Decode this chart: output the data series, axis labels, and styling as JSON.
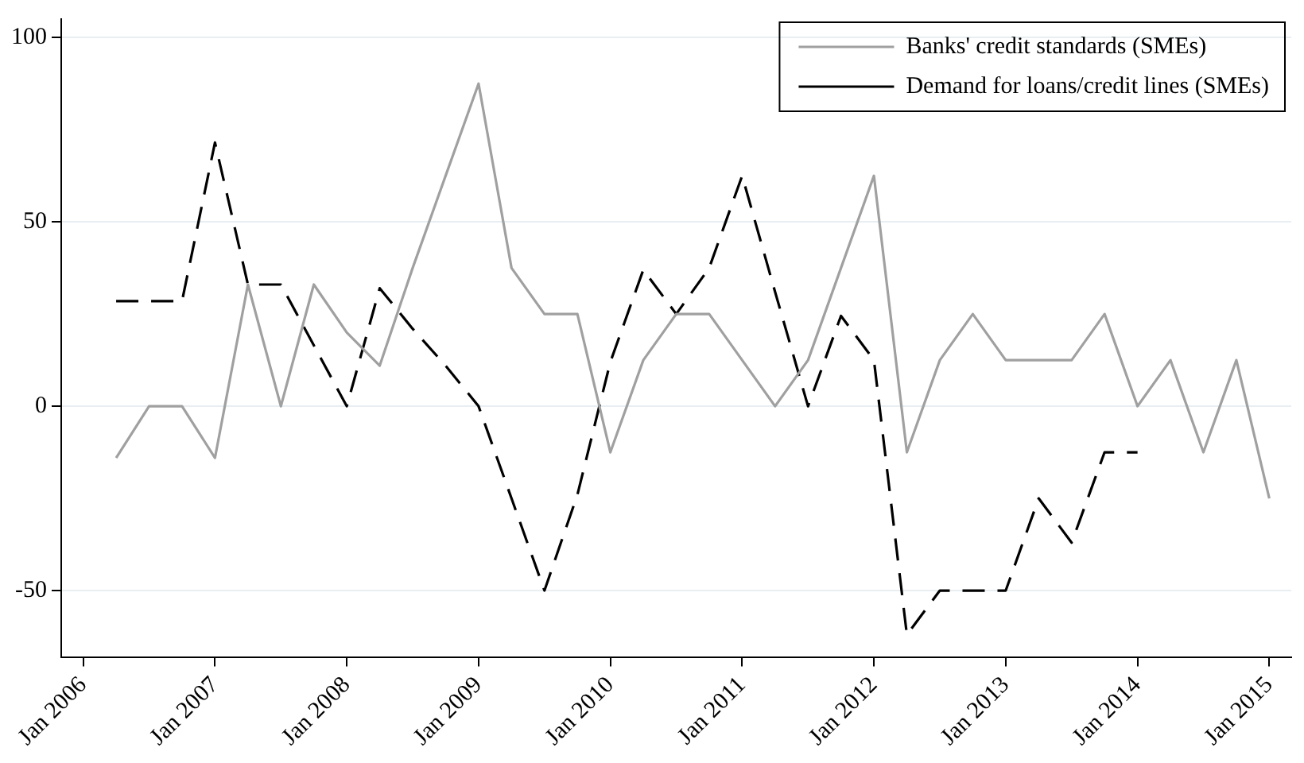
{
  "chart_data": {
    "type": "line",
    "x": [
      "2006-04",
      "2006-07",
      "2006-10",
      "2007-01",
      "2007-04",
      "2007-07",
      "2007-10",
      "2008-01",
      "2008-04",
      "2008-07",
      "2008-10",
      "2009-01",
      "2009-04",
      "2009-07",
      "2009-10",
      "2010-01",
      "2010-04",
      "2010-07",
      "2010-10",
      "2011-01",
      "2011-04",
      "2011-07",
      "2011-10",
      "2012-01",
      "2012-04",
      "2012-07",
      "2012-10",
      "2013-01",
      "2013-04",
      "2013-07",
      "2013-10",
      "2014-01",
      "2014-04",
      "2014-07",
      "2014-10",
      "2015-01"
    ],
    "series": [
      {
        "name": "Banks' credit standards (SMEs)",
        "color": "#a0a0a0",
        "line_style": "solid",
        "values": [
          -14,
          0,
          0,
          -14,
          33,
          0,
          33,
          20,
          11,
          37.5,
          62.5,
          87.5,
          37.5,
          25,
          25,
          -12.5,
          12.5,
          25,
          25,
          12.5,
          0,
          12.5,
          37.5,
          62.5,
          -12.5,
          12.5,
          25,
          12.5,
          12.5,
          12.5,
          25,
          0,
          12.5,
          -12.5,
          12.5,
          -25
        ]
      },
      {
        "name": "Demand for loans/credit lines (SMEs)",
        "color": "#000000",
        "line_style": "dashed",
        "values": [
          28.5,
          28.5,
          28.5,
          71.5,
          33,
          33,
          16.5,
          0,
          32,
          21,
          11,
          0,
          -25,
          -50,
          -24,
          12,
          37,
          25,
          37.5,
          62.5,
          31,
          0,
          24.5,
          12.5,
          -62,
          -50,
          -50,
          -50,
          -25,
          -37,
          -12.5,
          -12.5,
          null,
          null,
          null,
          null
        ]
      }
    ],
    "xlim": [
      "2005-11",
      "2015-03"
    ],
    "xticks": [
      {
        "value": "2006-01",
        "label": "Jan 2006"
      },
      {
        "value": "2007-01",
        "label": "Jan 2007"
      },
      {
        "value": "2008-01",
        "label": "Jan 2008"
      },
      {
        "value": "2009-01",
        "label": "Jan 2009"
      },
      {
        "value": "2010-01",
        "label": "Jan 2010"
      },
      {
        "value": "2011-01",
        "label": "Jan 2011"
      },
      {
        "value": "2012-01",
        "label": "Jan 2012"
      },
      {
        "value": "2013-01",
        "label": "Jan 2013"
      },
      {
        "value": "2014-01",
        "label": "Jan 2014"
      },
      {
        "value": "2015-01",
        "label": "Jan 2015"
      }
    ],
    "ylim": [
      -68,
      105
    ],
    "yticks": [
      -50,
      0,
      50,
      100
    ],
    "grid": "y",
    "legend": "top right",
    "marker": "none"
  }
}
